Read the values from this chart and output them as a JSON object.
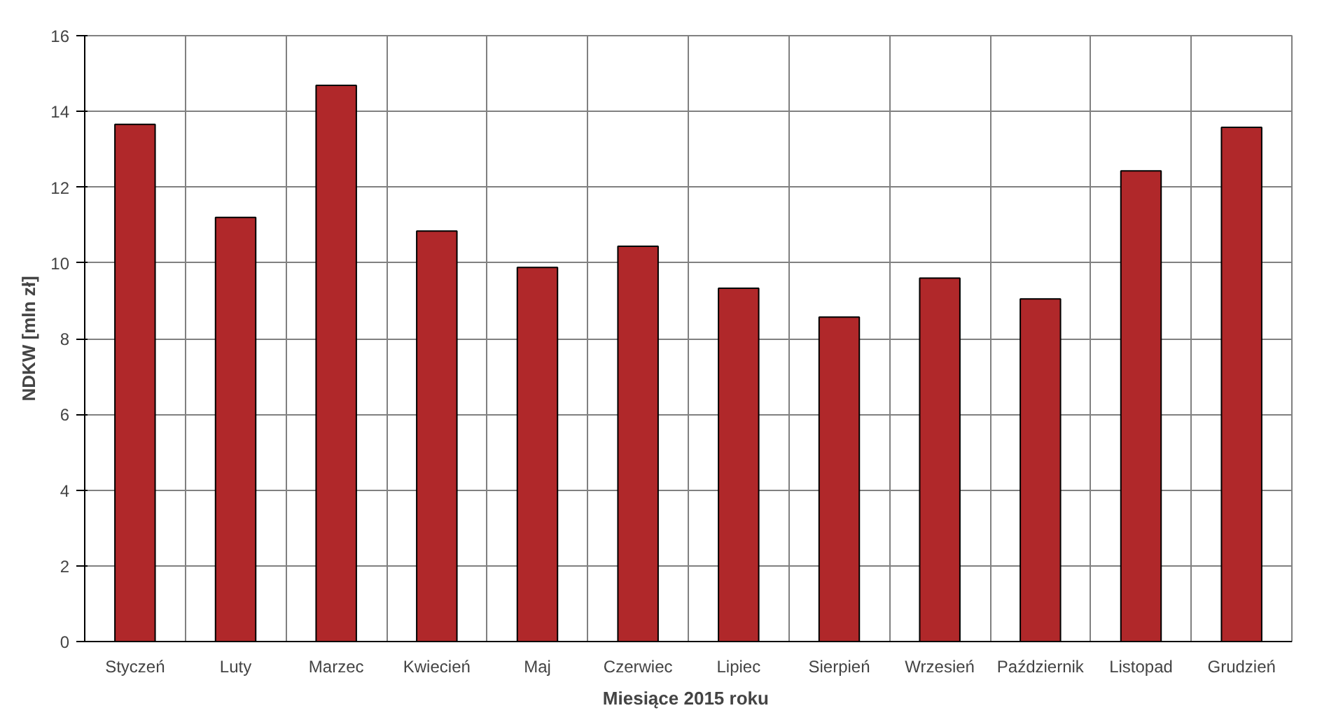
{
  "chart_data": {
    "type": "bar",
    "xlabel": "Miesiące 2015  roku",
    "ylabel": "NDKW [mln zł]",
    "categories": [
      "Styczeń",
      "Luty",
      "Marzec",
      "Kwiecień",
      "Maj",
      "Czerwiec",
      "Lipiec",
      "Sierpień",
      "Wrzesień",
      "Październik",
      "Listopad",
      "Grudzień"
    ],
    "values": [
      13.66,
      11.2,
      14.69,
      10.84,
      9.88,
      10.44,
      9.33,
      8.57,
      9.6,
      9.05,
      12.43,
      13.58
    ],
    "color": "#b0282a",
    "ylim": [
      0,
      16
    ],
    "yticks": [
      0,
      2,
      4,
      6,
      8,
      10,
      12,
      14,
      16
    ],
    "grid": true
  }
}
